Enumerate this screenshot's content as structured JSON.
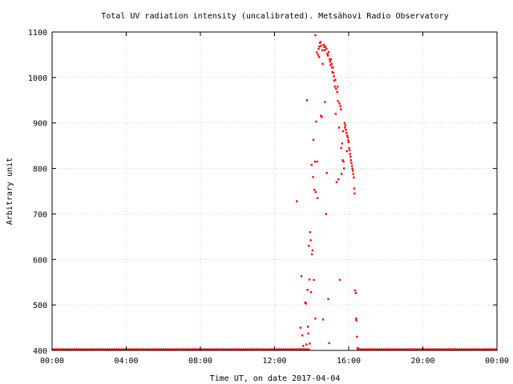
{
  "chart_data": {
    "type": "scatter",
    "title": "Total UV radiation intensity (uncalibrated). Metsähovi Radio Observatory",
    "xlabel": "Time UT, on date 2017-04-04",
    "ylabel": "Arbitrary unit",
    "x_unit": "hours UT",
    "xlim": [
      0,
      24
    ],
    "ylim": [
      400,
      1100
    ],
    "xticks": [
      {
        "value": 0,
        "label": "00:00"
      },
      {
        "value": 4,
        "label": "04:00"
      },
      {
        "value": 8,
        "label": "08:00"
      },
      {
        "value": 12,
        "label": "12:00"
      },
      {
        "value": 16,
        "label": "16:00"
      },
      {
        "value": 20,
        "label": "20:00"
      },
      {
        "value": 24,
        "label": "00:00"
      }
    ],
    "yticks": [
      {
        "value": 400,
        "label": "400"
      },
      {
        "value": 500,
        "label": "500"
      },
      {
        "value": 600,
        "label": "600"
      },
      {
        "value": 700,
        "label": "700"
      },
      {
        "value": 800,
        "label": "800"
      },
      {
        "value": 900,
        "label": "900"
      },
      {
        "value": 1000,
        "label": "1000"
      },
      {
        "value": 1100,
        "label": "1100"
      }
    ],
    "grid": true,
    "marker_color": "#ff0000",
    "series": [
      {
        "baseline": {
          "value": 400,
          "x_ranges": [
            [
              0,
              13.9
            ],
            [
              16.5,
              24
            ]
          ]
        },
        "points": [
          [
            13.2,
            728
          ],
          [
            13.35,
            402
          ],
          [
            13.4,
            450
          ],
          [
            13.45,
            563
          ],
          [
            13.5,
            433
          ],
          [
            13.55,
            410
          ],
          [
            13.65,
            505
          ],
          [
            13.7,
            503
          ],
          [
            13.72,
            413
          ],
          [
            13.75,
            950
          ],
          [
            13.78,
            533
          ],
          [
            13.8,
            452
          ],
          [
            13.82,
            437
          ],
          [
            13.85,
            630
          ],
          [
            13.88,
            556
          ],
          [
            13.9,
            415
          ],
          [
            13.92,
            660
          ],
          [
            13.95,
            642
          ],
          [
            13.97,
            528
          ],
          [
            14.0,
            808
          ],
          [
            14.02,
            611
          ],
          [
            14.05,
            620
          ],
          [
            14.08,
            781
          ],
          [
            14.1,
            863
          ],
          [
            14.12,
            555
          ],
          [
            14.15,
            753
          ],
          [
            14.18,
            815
          ],
          [
            14.2,
            470
          ],
          [
            14.2,
            1093
          ],
          [
            14.22,
            748
          ],
          [
            14.25,
            903
          ],
          [
            14.28,
            1055
          ],
          [
            14.3,
            815
          ],
          [
            14.32,
            735
          ],
          [
            14.35,
            1050
          ],
          [
            14.38,
            1063
          ],
          [
            14.4,
            1045
          ],
          [
            14.42,
            1068
          ],
          [
            14.45,
            1076
          ],
          [
            14.48,
            1078
          ],
          [
            14.5,
            916
          ],
          [
            14.52,
            1070
          ],
          [
            14.55,
            913
          ],
          [
            14.58,
            1060
          ],
          [
            14.6,
            1030
          ],
          [
            14.62,
            468
          ],
          [
            14.65,
            1072
          ],
          [
            14.68,
            1067
          ],
          [
            14.7,
            1060
          ],
          [
            14.72,
            946
          ],
          [
            14.75,
            1068
          ],
          [
            14.78,
            700
          ],
          [
            14.8,
            1063
          ],
          [
            14.82,
            790
          ],
          [
            14.85,
            1052
          ],
          [
            14.88,
            1048
          ],
          [
            14.9,
            513
          ],
          [
            14.92,
            1056
          ],
          [
            14.95,
            416
          ],
          [
            14.97,
            1040
          ],
          [
            15.0,
            1035
          ],
          [
            15.02,
            1027
          ],
          [
            15.05,
            1040
          ],
          [
            15.08,
            1030
          ],
          [
            15.1,
            1022
          ],
          [
            15.12,
            1012
          ],
          [
            15.15,
            1022
          ],
          [
            15.18,
            1010
          ],
          [
            15.2,
            1003
          ],
          [
            15.22,
            993
          ],
          [
            15.25,
            980
          ],
          [
            15.28,
            995
          ],
          [
            15.3,
            920
          ],
          [
            15.32,
            975
          ],
          [
            15.35,
            770
          ],
          [
            15.38,
            968
          ],
          [
            15.4,
            980
          ],
          [
            15.42,
            948
          ],
          [
            15.45,
            776
          ],
          [
            15.48,
            890
          ],
          [
            15.5,
            943
          ],
          [
            15.52,
            555
          ],
          [
            15.55,
            937
          ],
          [
            15.58,
            930
          ],
          [
            15.6,
            845
          ],
          [
            15.62,
            788
          ],
          [
            15.65,
            855
          ],
          [
            15.68,
            818
          ],
          [
            15.7,
            882
          ],
          [
            15.72,
            815
          ],
          [
            15.75,
            800
          ],
          [
            15.78,
            900
          ],
          [
            15.8,
            890
          ],
          [
            15.82,
            895
          ],
          [
            15.85,
            885
          ],
          [
            15.88,
            878
          ],
          [
            15.9,
            838
          ],
          [
            15.92,
            872
          ],
          [
            15.95,
            868
          ],
          [
            15.98,
            862
          ],
          [
            16.0,
            858
          ],
          [
            16.02,
            845
          ],
          [
            16.05,
            840
          ],
          [
            16.08,
            832
          ],
          [
            16.1,
            826
          ],
          [
            16.12,
            818
          ],
          [
            16.15,
            812
          ],
          [
            16.18,
            806
          ],
          [
            16.2,
            800
          ],
          [
            16.22,
            795
          ],
          [
            16.25,
            788
          ],
          [
            16.28,
            780
          ],
          [
            16.3,
            756
          ],
          [
            16.32,
            745
          ],
          [
            16.35,
            532
          ],
          [
            16.38,
            526
          ],
          [
            16.4,
            470
          ],
          [
            16.42,
            466
          ],
          [
            16.45,
            430
          ],
          [
            16.48,
            405
          ],
          [
            16.5,
            402
          ]
        ]
      }
    ]
  }
}
